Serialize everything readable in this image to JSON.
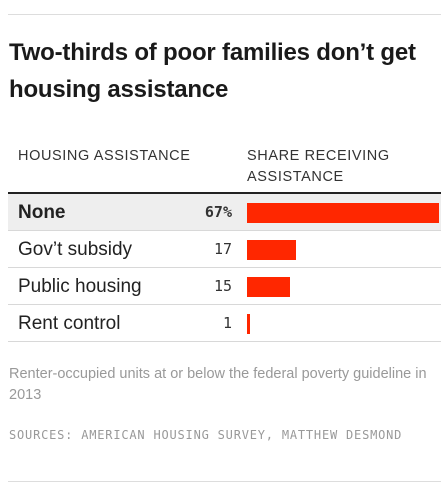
{
  "title": "Two-thirds of poor families don’t get housing assistance",
  "columns": {
    "left": "HOUSING ASSISTANCE",
    "right": "SHARE RECEIVING ASSISTANCE"
  },
  "note": "Renter-occupied units at or below the federal poverty guideline in 2013",
  "sources": "SOURCES: AMERICAN HOUSING SURVEY, MATTHEW DESMOND",
  "colors": {
    "bar": "#ff2700",
    "highlight_row": "#eeeeee"
  },
  "chart_data": {
    "type": "bar",
    "orientation": "horizontal",
    "title": "Two-thirds of poor families don’t get housing assistance",
    "xlabel": "SHARE RECEIVING ASSISTANCE",
    "ylabel": "HOUSING ASSISTANCE",
    "categories": [
      "None",
      "Gov’t subsidy",
      "Public housing",
      "Rent control"
    ],
    "values": [
      67,
      17,
      15,
      1
    ],
    "value_labels": [
      "67%",
      "17",
      "15",
      "1"
    ],
    "highlighted": [
      "None"
    ],
    "xlim": [
      0,
      67
    ]
  }
}
